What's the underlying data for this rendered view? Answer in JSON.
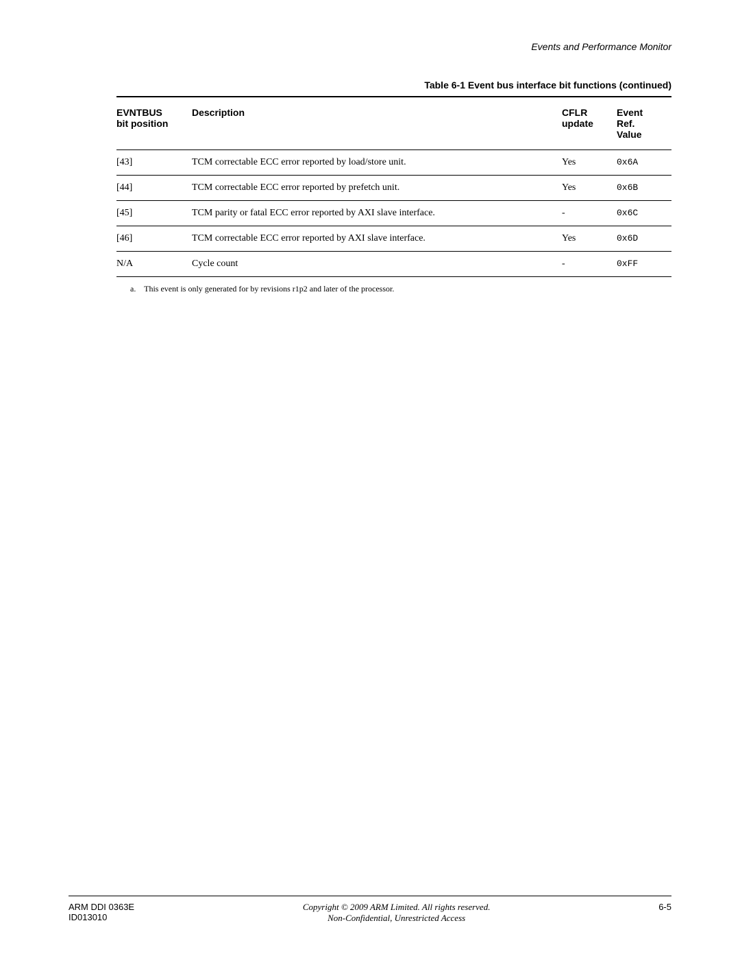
{
  "header": {
    "section_title": "Events and Performance Monitor"
  },
  "table": {
    "caption": "Table 6-1 Event bus interface bit functions (continued)",
    "columns": {
      "col1_line1": "EVNTBUS",
      "col1_line2": "bit position",
      "col2": "Description",
      "col3_line1": "CFLR",
      "col3_line2": "update",
      "col4_line1": "Event",
      "col4_line2": "Ref.",
      "col4_line3": "Value"
    },
    "rows": [
      {
        "pos": "[43]",
        "desc": "TCM correctable ECC error reported by load/store unit.",
        "cflr": "Yes",
        "event": "0x6A"
      },
      {
        "pos": "[44]",
        "desc": "TCM correctable ECC error reported by prefetch unit.",
        "cflr": "Yes",
        "event": "0x6B"
      },
      {
        "pos": "[45]",
        "desc": "TCM parity or fatal ECC error reported by AXI slave interface.",
        "cflr": "-",
        "event": "0x6C"
      },
      {
        "pos": "[46]",
        "desc": "TCM correctable ECC error reported by AXI slave interface.",
        "cflr": "Yes",
        "event": "0x6D"
      },
      {
        "pos": "N/A",
        "desc": "Cycle count",
        "cflr": "-",
        "event": "0xFF"
      }
    ],
    "footnote_label": "a.",
    "footnote_text": "This event is only generated for by revisions r1p2 and later of the processor."
  },
  "footer": {
    "doc_id_line1": "ARM DDI 0363E",
    "doc_id_line2": "ID013010",
    "copyright_line1": "Copyright © 2009 ARM Limited. All rights reserved.",
    "copyright_line2": "Non-Confidential, Unrestricted Access",
    "page_num": "6-5"
  }
}
